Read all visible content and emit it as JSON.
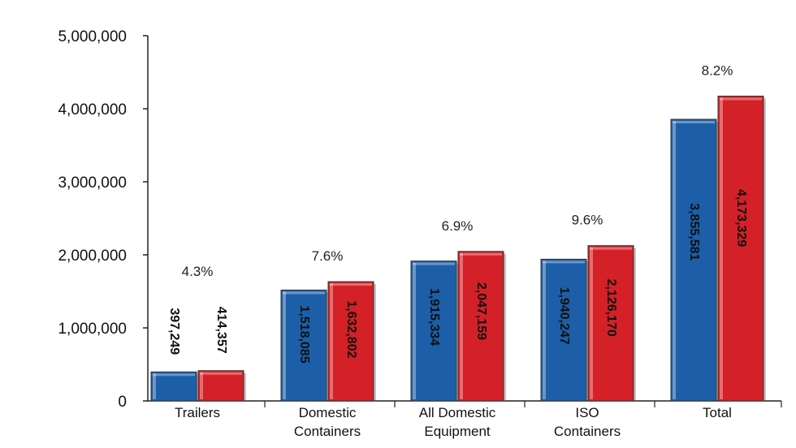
{
  "chart_data": {
    "type": "bar",
    "categories": [
      [
        "Trailers"
      ],
      [
        "Domestic",
        "Containers"
      ],
      [
        "All Domestic",
        "Equipment"
      ],
      [
        "ISO",
        "Containers"
      ],
      [
        "Total"
      ]
    ],
    "series": [
      {
        "color": "#1c5fa8",
        "values": [
          397249,
          1518085,
          1915334,
          1940247,
          3855581
        ]
      },
      {
        "color": "#d42027",
        "values": [
          414357,
          1632802,
          2047159,
          2126170,
          4173329
        ]
      }
    ],
    "value_labels": [
      [
        "397,249",
        "1,518,085",
        "1,915,334",
        "1,940,247",
        "3,855,581"
      ],
      [
        "414,357",
        "1,632,802",
        "2,047,159",
        "2,126,170",
        "4,173,329"
      ]
    ],
    "growth_labels": [
      "4.3%",
      "7.6%",
      "6.9%",
      "9.6%",
      "8.2%"
    ],
    "ylim": [
      0,
      5000000
    ],
    "yticks": [
      0,
      1000000,
      2000000,
      3000000,
      4000000,
      5000000
    ],
    "ytick_labels": [
      "0",
      "1,000,000",
      "2,000,000",
      "3,000,000",
      "4,000,000",
      "5,000,000"
    ],
    "grid": false,
    "title": "",
    "xlabel": "",
    "ylabel": ""
  }
}
